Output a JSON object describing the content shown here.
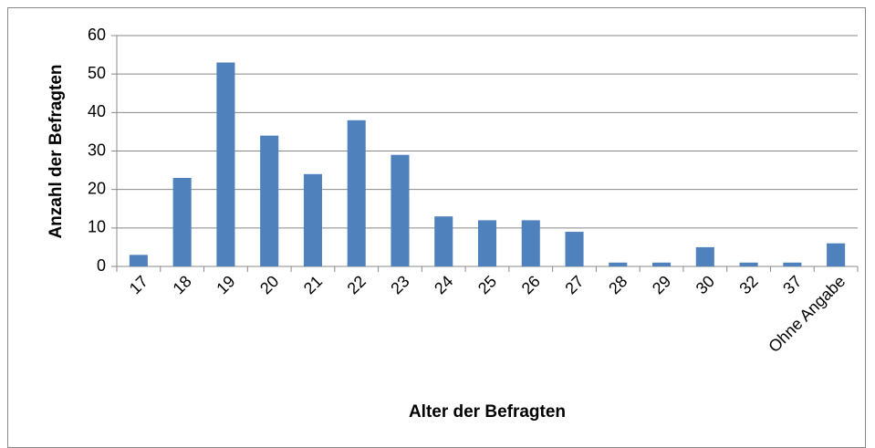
{
  "chart_data": {
    "type": "bar",
    "x_label": "Alter der Befragten",
    "y_label": "Anzahl der Befragten",
    "categories": [
      "17",
      "18",
      "19",
      "20",
      "21",
      "22",
      "23",
      "24",
      "25",
      "26",
      "27",
      "28",
      "29",
      "30",
      "32",
      "37",
      "Ohne Angabe"
    ],
    "values": [
      3,
      23,
      53,
      34,
      24,
      38,
      29,
      13,
      12,
      12,
      9,
      1,
      1,
      5,
      1,
      1,
      6
    ],
    "color": "#4f81bd",
    "ylim": [
      0,
      60
    ],
    "yticks": [
      0,
      10,
      20,
      30,
      40,
      50,
      60
    ],
    "grid": true
  }
}
